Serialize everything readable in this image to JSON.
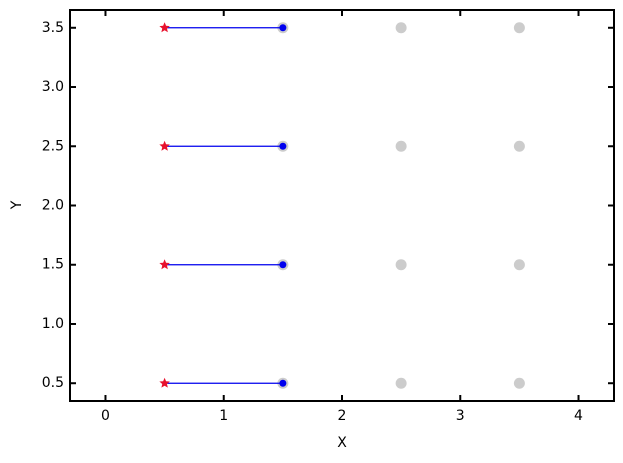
{
  "chart_data": {
    "type": "scatter",
    "x_label": "X",
    "y_label": "Y",
    "xlim": [
      -0.3,
      4.3
    ],
    "ylim": [
      0.35,
      3.65
    ],
    "xticks": [
      0,
      1,
      2,
      3,
      4
    ],
    "yticks": [
      {
        "value": 0.5,
        "label": "0.5"
      },
      {
        "value": 1,
        "label": "1.0"
      },
      {
        "value": 1.5,
        "label": "1.5"
      },
      {
        "value": 2,
        "label": "2.0"
      },
      {
        "value": 2.5,
        "label": "2.5"
      },
      {
        "value": 3,
        "label": "3.0"
      },
      {
        "value": 3.5,
        "label": "3.5"
      }
    ],
    "series": [
      {
        "kind": "points",
        "marker": "circle",
        "color": "#cccccc",
        "x": [
          1.5,
          2.5,
          3.5,
          1.5,
          2.5,
          3.5,
          1.5,
          2.5,
          3.5,
          1.5,
          2.5,
          3.5
        ],
        "y": [
          0.5,
          0.5,
          0.5,
          1.5,
          1.5,
          1.5,
          2.5,
          2.5,
          2.5,
          3.5,
          3.5,
          3.5
        ]
      },
      {
        "kind": "line",
        "color": "#0000ee",
        "x": [
          0.5,
          1.5,
          null,
          0.5,
          1.5,
          null,
          0.5,
          1.5,
          null,
          0.5,
          1.5
        ],
        "y": [
          0.5,
          0.5,
          null,
          1.5,
          1.5,
          null,
          2.5,
          2.5,
          null,
          3.5,
          3.5
        ]
      },
      {
        "kind": "points",
        "marker": "circle",
        "color": "#0000ee",
        "x": [
          1.5,
          1.5,
          1.5,
          1.5
        ],
        "y": [
          0.5,
          1.5,
          2.5,
          3.5
        ]
      },
      {
        "kind": "points",
        "marker": "star",
        "color": "#e8112d",
        "x": [
          0.5,
          0.5,
          0.5,
          0.5
        ],
        "y": [
          0.5,
          1.5,
          2.5,
          3.5
        ]
      }
    ]
  }
}
